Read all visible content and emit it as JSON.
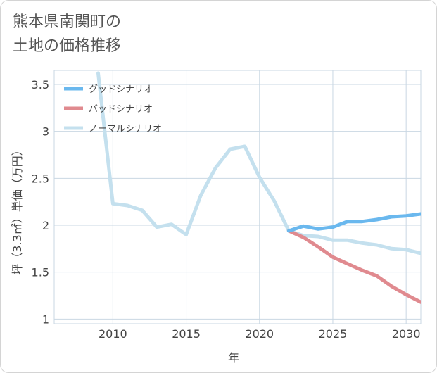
{
  "title": "熊本県南関町の\n土地の価格推移",
  "chart_data": {
    "type": "line",
    "xlabel": "年",
    "ylabel": "坪（3.3㎡）単価（万円）",
    "xlim": [
      2006,
      2031
    ],
    "ylim": [
      0.95,
      3.65
    ],
    "xticks": [
      2010,
      2015,
      2020,
      2025,
      2030
    ],
    "yticks": [
      1,
      1.5,
      2,
      2.5,
      3,
      3.5
    ],
    "ytick_labels": [
      "1",
      "1.5",
      "2",
      "2.5",
      "3",
      "3.5"
    ],
    "grid": true,
    "legend_position": "top-left",
    "series": [
      {
        "name": "ノーマルシナリオ",
        "color": "#c4e0ee",
        "x": [
          2009,
          2010,
          2011,
          2012,
          2013,
          2014,
          2015,
          2016,
          2017,
          2018,
          2019,
          2020,
          2021,
          2022,
          2023,
          2024,
          2025,
          2026,
          2027,
          2028,
          2029,
          2030,
          2031
        ],
        "y": [
          3.62,
          2.23,
          2.21,
          2.16,
          1.98,
          2.01,
          1.9,
          2.32,
          2.61,
          2.81,
          2.84,
          2.51,
          2.26,
          1.94,
          1.89,
          1.88,
          1.84,
          1.84,
          1.81,
          1.79,
          1.75,
          1.74,
          1.7
        ]
      },
      {
        "name": "バッドシナリオ",
        "color": "#e08a8f",
        "x": [
          2022,
          2023,
          2024,
          2025,
          2026,
          2027,
          2028,
          2029,
          2030,
          2031
        ],
        "y": [
          1.94,
          1.87,
          1.77,
          1.66,
          1.59,
          1.52,
          1.46,
          1.35,
          1.26,
          1.18
        ]
      },
      {
        "name": "グッドシナリオ",
        "color": "#6ab8ee",
        "x": [
          2022,
          2023,
          2024,
          2025,
          2026,
          2027,
          2028,
          2029,
          2030,
          2031
        ],
        "y": [
          1.94,
          1.99,
          1.96,
          1.98,
          2.04,
          2.04,
          2.06,
          2.09,
          2.1,
          2.12
        ]
      }
    ],
    "legend": [
      {
        "name": "グッドシナリオ",
        "color": "#6ab8ee"
      },
      {
        "name": "バッドシナリオ",
        "color": "#e08a8f"
      },
      {
        "name": "ノーマルシナリオ",
        "color": "#c4e0ee"
      }
    ]
  }
}
